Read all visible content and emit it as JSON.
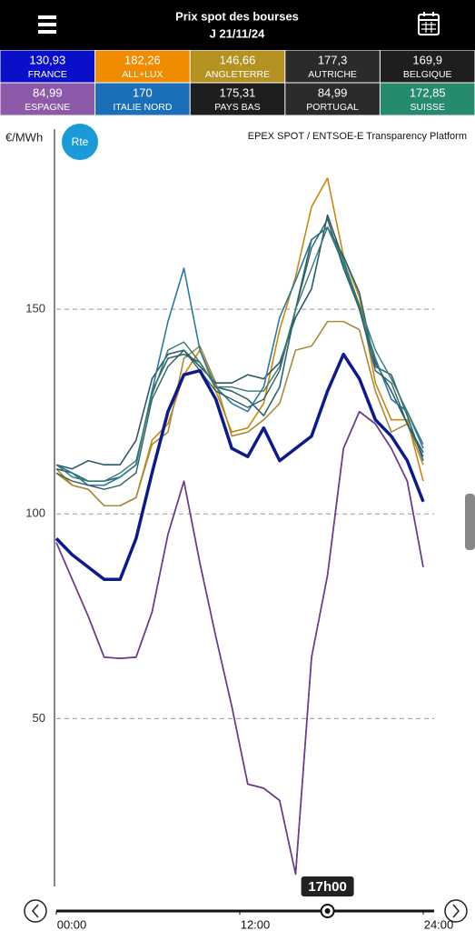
{
  "chart_data": {
    "type": "line",
    "title": "Prix spot des bourses",
    "subtitle": "J 21/11/24",
    "y_label": "€/MWh",
    "logo": "Rte",
    "source": "EPEX SPOT / ENTSOE-E Transparency Platform",
    "x": [
      0,
      1,
      2,
      3,
      4,
      5,
      6,
      7,
      8,
      9,
      10,
      11,
      12,
      13,
      14,
      15,
      16,
      17,
      18,
      19,
      20,
      21,
      22,
      23
    ],
    "xlim": [
      0,
      23
    ],
    "xticks": [
      {
        "value": 0,
        "label": "00:00"
      },
      {
        "value": 11.5,
        "label": "12:00"
      },
      {
        "value": 23,
        "label": "24:00"
      }
    ],
    "ylim": [
      9,
      194
    ],
    "yticks": [
      50,
      100,
      150
    ],
    "grid": true,
    "current_time": {
      "value": 17,
      "label": "17h00"
    },
    "series": [
      {
        "name": "FRANCE",
        "value_label": "130,93",
        "tile_color": "#0a10c8",
        "color": "#0c1a8c",
        "width": 3.5,
        "values": [
          94,
          90,
          87,
          84,
          84,
          94,
          110,
          125,
          134,
          135,
          128,
          116,
          114,
          121,
          113,
          116,
          119,
          130,
          139,
          133,
          123,
          119,
          113,
          103
        ]
      },
      {
        "name": "ALL+LUX",
        "value_label": "182,26",
        "tile_color": "#f08c00",
        "color": "#cc8710",
        "width": 1.6,
        "values": [
          111,
          107,
          106,
          102,
          102,
          104,
          118,
          122,
          134,
          140,
          130,
          120,
          121,
          127,
          145,
          158,
          175,
          182,
          163,
          153,
          132,
          123,
          123,
          108
        ]
      },
      {
        "name": "ANGLETERRE",
        "value_label": "146,66",
        "tile_color": "#b39222",
        "color": "#a68c3c",
        "width": 1.6,
        "values": [
          110,
          107,
          106,
          102,
          102,
          104,
          117,
          120,
          138,
          141,
          132,
          119,
          120,
          123,
          127,
          140,
          141,
          147,
          147,
          145,
          130,
          120,
          122,
          112
        ]
      },
      {
        "name": "AUTRICHE",
        "value_label": "177,3",
        "tile_color": "#2b2b2b",
        "color": "#2a5a68",
        "width": 1.6,
        "values": [
          112,
          111,
          113,
          112,
          112,
          118,
          133,
          139,
          140,
          136,
          132,
          132,
          134,
          133,
          137,
          148,
          155,
          173,
          162,
          150,
          137,
          130,
          122,
          115
        ]
      },
      {
        "name": "BELGIQUE",
        "value_label": "169,9",
        "tile_color": "#1e1e1e",
        "color": "#2a6670",
        "width": 1.6,
        "values": [
          111,
          110,
          108,
          108,
          109,
          112,
          130,
          138,
          139,
          137,
          131,
          130,
          128,
          124,
          131,
          150,
          167,
          170,
          163,
          154,
          136,
          134,
          124,
          113
        ]
      },
      {
        "name": "ESPAGNE",
        "value_label": "84,99",
        "tile_color": "#8c5aa8",
        "color": "#6a3d8a",
        "width": 1.6,
        "values": [
          93,
          84,
          75,
          65,
          64.7,
          65,
          76,
          95,
          108,
          88,
          70,
          53,
          34,
          33,
          30,
          12,
          65,
          85,
          116,
          125,
          122,
          116,
          108,
          87
        ]
      },
      {
        "name": "ITALIE NORD",
        "value_label": "170",
        "tile_color": "#1b6fb8",
        "color": "#2a7aa0",
        "width": 1.6,
        "values": [
          112,
          110,
          107,
          107,
          109,
          112,
          130,
          147,
          160,
          140,
          131,
          127,
          125,
          131,
          148,
          157,
          167,
          170,
          161,
          150,
          138,
          128,
          125,
          116
        ]
      },
      {
        "name": "PAYS BAS",
        "value_label": "175,31",
        "tile_color": "#1e1e1e",
        "color": "#306060",
        "width": 1.4,
        "values": [
          110,
          108,
          107,
          106,
          107,
          110,
          128,
          136,
          140,
          135,
          130,
          128,
          126,
          128,
          135,
          150,
          165,
          172,
          160,
          150,
          135,
          132,
          122,
          114
        ]
      },
      {
        "name": "PORTUGAL",
        "value_label": "84,99",
        "tile_color": "#2b2b2b",
        "color": "#6a3d8a",
        "width": 1.6,
        "values": [
          93,
          84,
          75,
          65,
          64.7,
          65,
          76,
          95,
          108,
          88,
          70,
          53,
          34,
          33,
          30,
          12,
          65,
          85,
          116,
          125,
          122,
          116,
          108,
          87
        ]
      },
      {
        "name": "SUISSE",
        "value_label": "172,85",
        "tile_color": "#268a6e",
        "color": "#3a7a70",
        "width": 1.4,
        "values": [
          112,
          109,
          108,
          108,
          110,
          113,
          129,
          140,
          142,
          137,
          131,
          131,
          130,
          130,
          136,
          150,
          160,
          170,
          162,
          151,
          140,
          133,
          125,
          117
        ]
      }
    ]
  }
}
